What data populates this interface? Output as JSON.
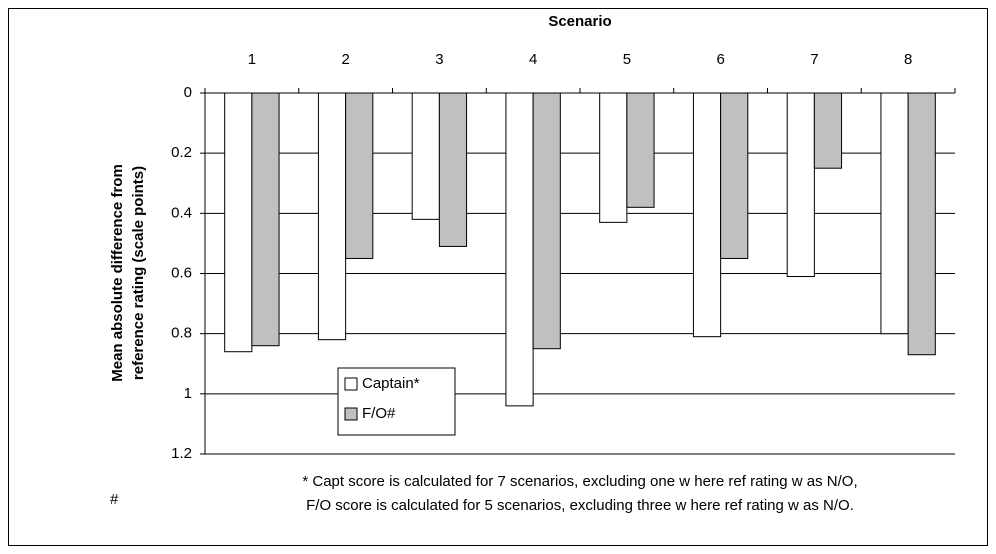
{
  "chart_data": {
    "type": "bar",
    "title": "Scenario",
    "y_label": [
      "Mean absolute difference from",
      "reference rating (scale points)"
    ],
    "categories": [
      "1",
      "2",
      "3",
      "4",
      "5",
      "6",
      "7",
      "8"
    ],
    "series": [
      {
        "name": "Captain*",
        "color": "#ffffff",
        "values": [
          0.86,
          0.82,
          0.42,
          1.04,
          0.43,
          0.81,
          0.61,
          0.8
        ]
      },
      {
        "name": "F/O#",
        "color": "#c0c0c0",
        "values": [
          0.84,
          0.55,
          0.51,
          0.85,
          0.38,
          0.55,
          0.25,
          0.87
        ]
      }
    ],
    "ylim": [
      0,
      1.2
    ],
    "yticks": [
      0,
      0.2,
      0.4,
      0.6,
      0.8,
      1,
      1.2
    ],
    "y_inverted": true,
    "grid": true,
    "footnote_marker": "#",
    "footnote": [
      "* Capt score is calculated for 7 scenarios, excluding one w here ref rating w as N/O,",
      "F/O score is calculated for 5 scenarios, excluding three w here ref rating w as N/O."
    ]
  }
}
